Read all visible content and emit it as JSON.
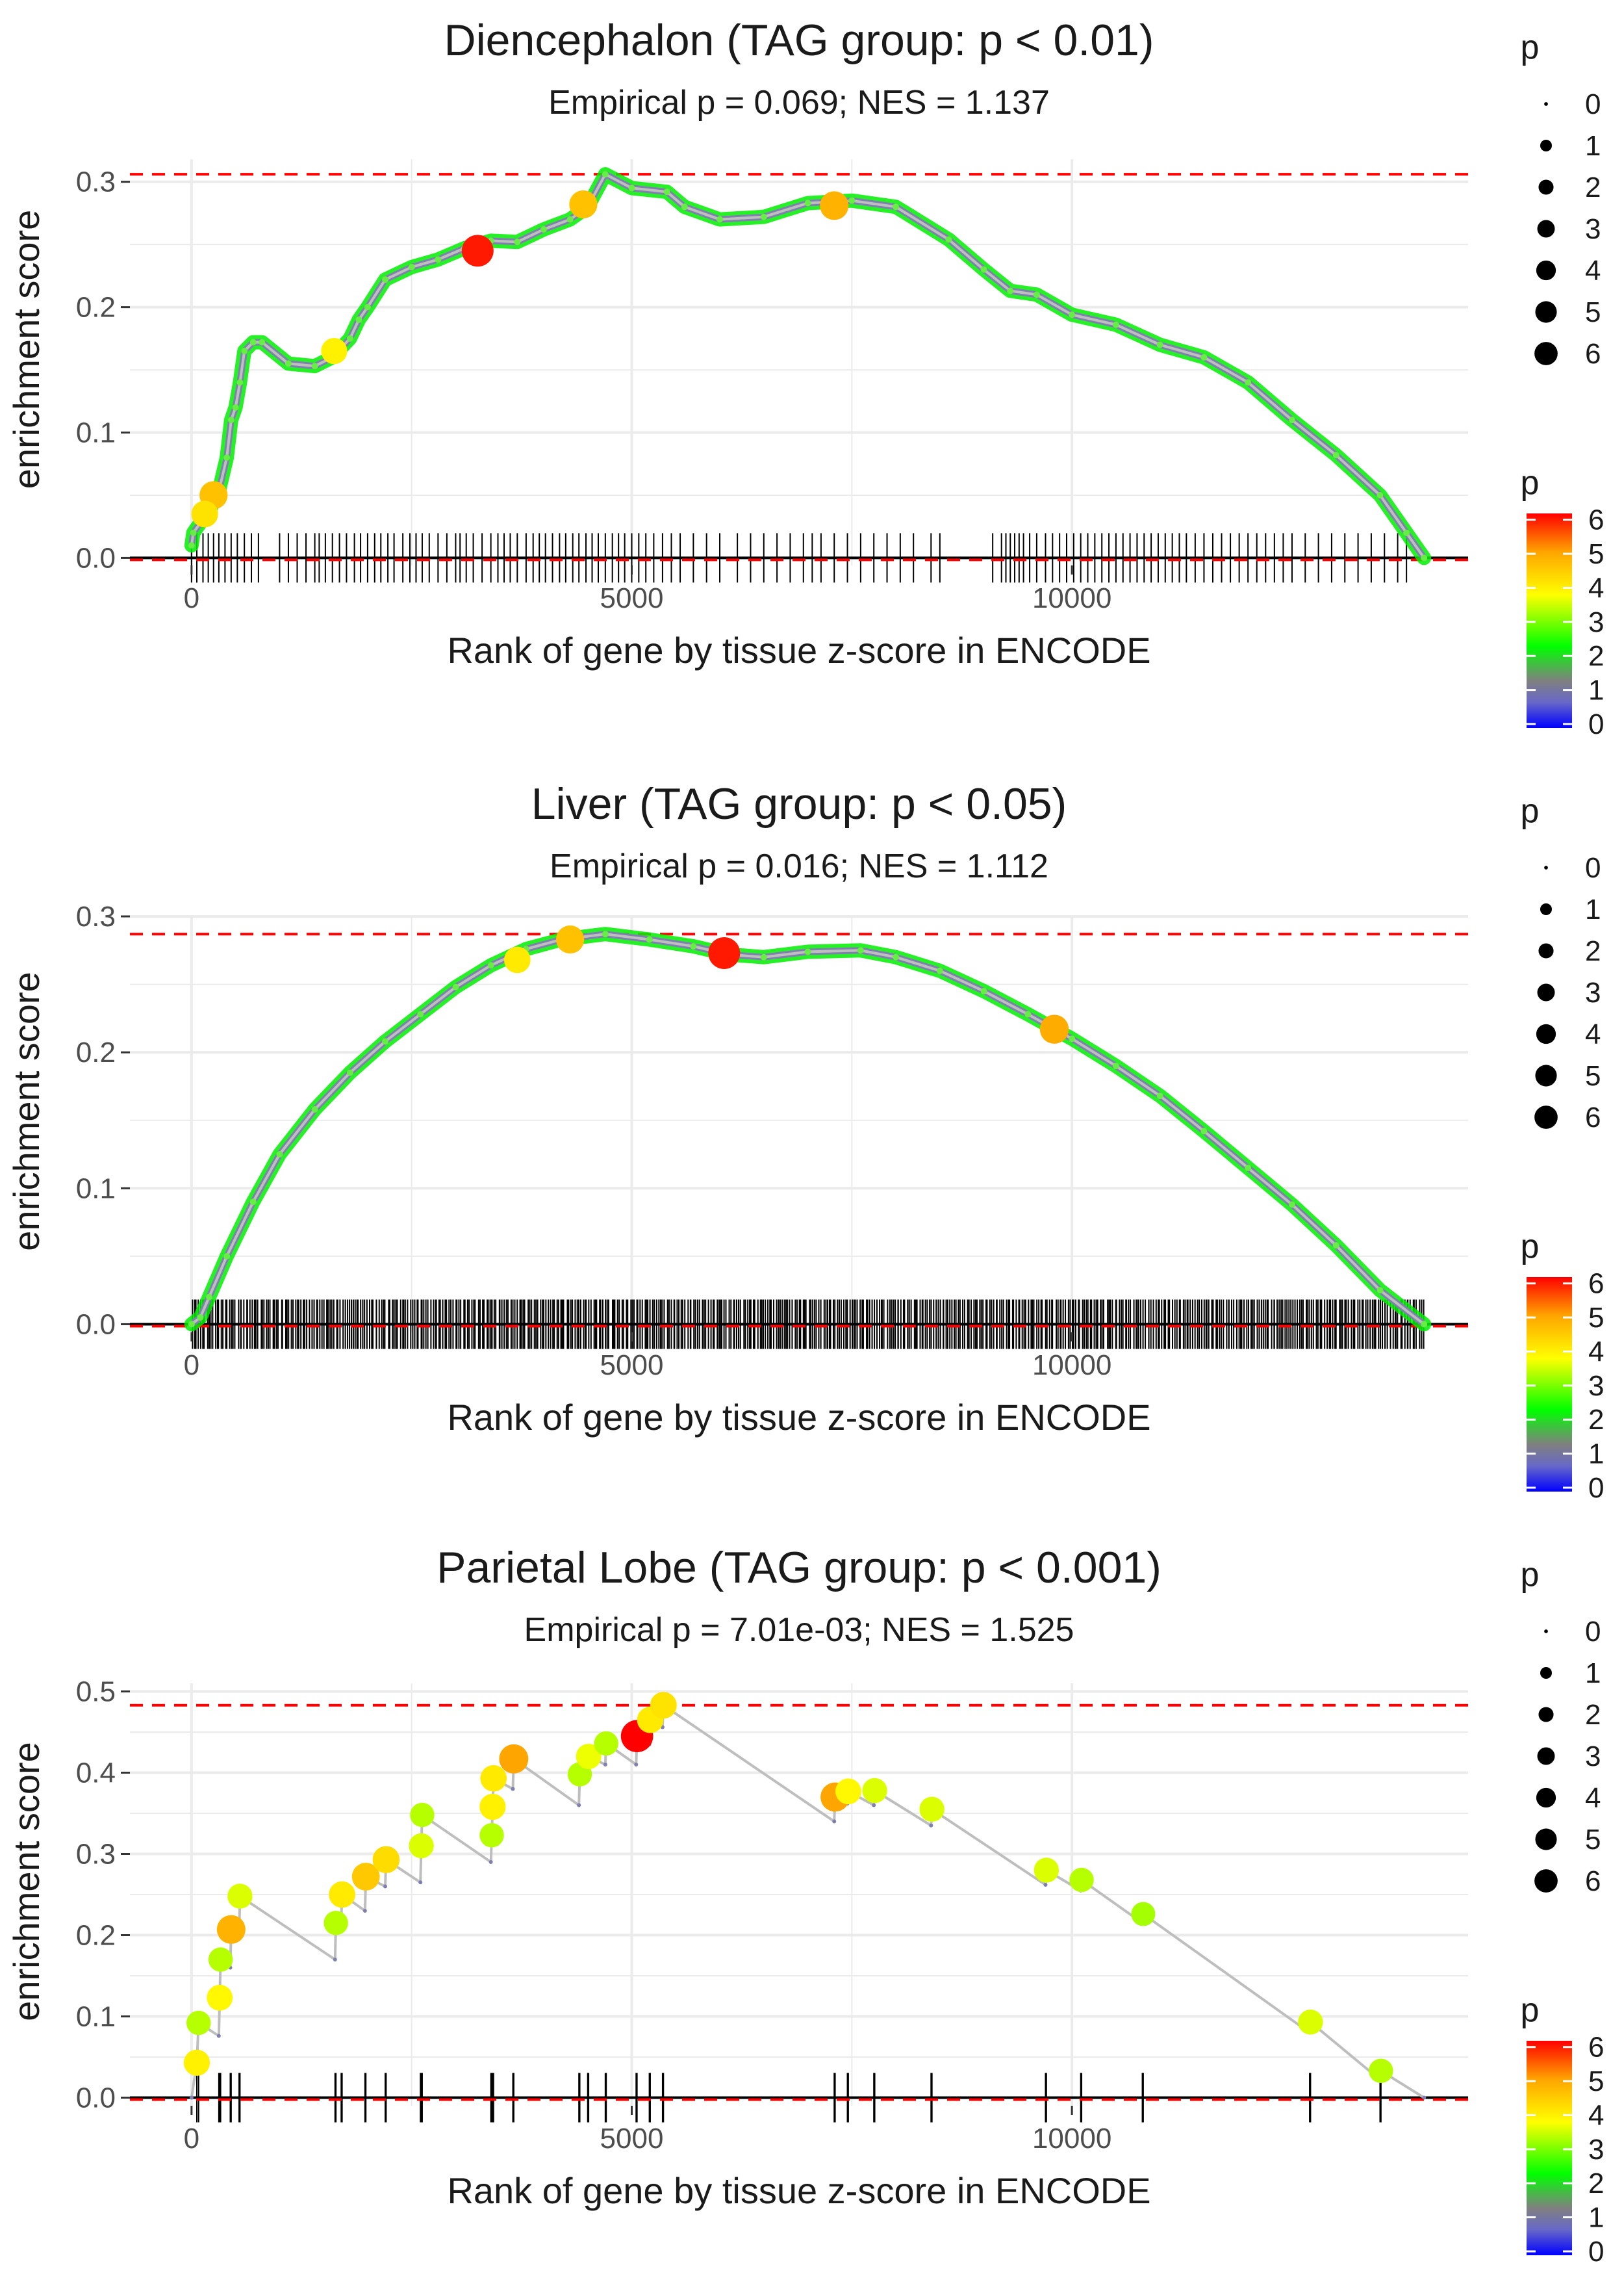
{
  "legend_title": "p",
  "chart_data": [
    {
      "type": "line",
      "title": "Diencephalon (TAG group: p < 0.01)",
      "subtitle": "Empirical p = 0.069; NES = 1.137",
      "xlabel": "Rank of gene by tissue z-score in ENCODE",
      "ylabel": "enrichment score",
      "xlim": [
        -700,
        14500
      ],
      "ylim": [
        -0.006,
        0.318
      ],
      "xticks": [
        0,
        5000,
        10000
      ],
      "xtick_labels": [
        "0",
        "5000",
        "10000"
      ],
      "yticks": [
        0.0,
        0.1,
        0.2,
        0.3
      ],
      "ytick_labels": [
        "0.0",
        "0.1",
        "0.2",
        "0.3"
      ],
      "max_es": 0.306,
      "line_points": [
        [
          0,
          0.01
        ],
        [
          20,
          0.02
        ],
        [
          100,
          0.028
        ],
        [
          200,
          0.038
        ],
        [
          300,
          0.05
        ],
        [
          400,
          0.08
        ],
        [
          450,
          0.11
        ],
        [
          500,
          0.12
        ],
        [
          550,
          0.14
        ],
        [
          600,
          0.165
        ],
        [
          700,
          0.172
        ],
        [
          800,
          0.172
        ],
        [
          1100,
          0.155
        ],
        [
          1400,
          0.153
        ],
        [
          1600,
          0.16
        ],
        [
          1800,
          0.175
        ],
        [
          1900,
          0.19
        ],
        [
          2000,
          0.2
        ],
        [
          2200,
          0.222
        ],
        [
          2500,
          0.232
        ],
        [
          2800,
          0.238
        ],
        [
          3100,
          0.247
        ],
        [
          3400,
          0.253
        ],
        [
          3700,
          0.252
        ],
        [
          4000,
          0.262
        ],
        [
          4300,
          0.27
        ],
        [
          4500,
          0.28
        ],
        [
          4700,
          0.306
        ],
        [
          5000,
          0.295
        ],
        [
          5400,
          0.292
        ],
        [
          5600,
          0.28
        ],
        [
          6000,
          0.27
        ],
        [
          6500,
          0.272
        ],
        [
          7000,
          0.283
        ],
        [
          7500,
          0.285
        ],
        [
          8000,
          0.28
        ],
        [
          8600,
          0.254
        ],
        [
          9000,
          0.23
        ],
        [
          9300,
          0.213
        ],
        [
          9600,
          0.21
        ],
        [
          10000,
          0.194
        ],
        [
          10500,
          0.186
        ],
        [
          11000,
          0.17
        ],
        [
          11500,
          0.16
        ],
        [
          12000,
          0.14
        ],
        [
          12500,
          0.11
        ],
        [
          13000,
          0.082
        ],
        [
          13500,
          0.05
        ],
        [
          13800,
          0.02
        ],
        [
          14000,
          0.0
        ]
      ],
      "highlight_points": [
        {
          "x": 250,
          "y": 0.05,
          "p": 4.3
        },
        {
          "x": 150,
          "y": 0.035,
          "p": 3.8
        },
        {
          "x": 4450,
          "y": 0.282,
          "p": 4.3
        },
        {
          "x": 3250,
          "y": 0.245,
          "p": 5.8
        },
        {
          "x": 7300,
          "y": 0.281,
          "p": 4.5
        },
        {
          "x": 1620,
          "y": 0.165,
          "p": 3.6
        }
      ],
      "hits": [
        0,
        60,
        130,
        190,
        250,
        310,
        380,
        450,
        520,
        600,
        680,
        760,
        1000,
        1100,
        1200,
        1300,
        1400,
        1450,
        1520,
        1600,
        1680,
        1760,
        1850,
        1920,
        2000,
        2080,
        2150,
        2230,
        2300,
        2400,
        2480,
        2550,
        2620,
        2700,
        2800,
        2900,
        3000,
        3050,
        3120,
        3200,
        3300,
        3400,
        3480,
        3550,
        3620,
        3700,
        3800,
        3880,
        3950,
        4020,
        4100,
        4180,
        4250,
        4330,
        4400,
        4480,
        4550,
        4620,
        4700,
        4780,
        4850,
        4920,
        5000,
        5080,
        5160,
        5250,
        5350,
        5450,
        5550,
        5700,
        5850,
        6000,
        6200,
        6350,
        6500,
        6650,
        6800,
        6950,
        7050,
        7150,
        7300,
        7450,
        7600,
        7750,
        7900,
        8050,
        8200,
        8400,
        8500,
        9100,
        9200,
        9250,
        9300,
        9350,
        9400,
        9450,
        9520,
        9600,
        9700,
        9780,
        9860,
        9940,
        10020,
        10100,
        10180,
        10260,
        10340,
        10420,
        10500,
        10580,
        10660,
        10740,
        10820,
        10900,
        10980,
        11060,
        11140,
        11220,
        11300,
        11400,
        11500,
        11600,
        11700,
        11800,
        11900,
        12000,
        12100,
        12200,
        12300,
        12400,
        12500,
        12650,
        12800,
        12950,
        13100,
        13250,
        13400,
        13550,
        13700,
        13800
      ]
    },
    {
      "type": "line",
      "title": "Liver (TAG group: p < 0.05)",
      "subtitle": "Empirical p = 0.016; NES = 1.112",
      "xlabel": "Rank of gene by tissue z-score in ENCODE",
      "ylabel": "enrichment score",
      "xlim": [
        -700,
        14500
      ],
      "ylim": [
        -0.006,
        0.3
      ],
      "xticks": [
        0,
        5000,
        10000
      ],
      "xtick_labels": [
        "0",
        "5000",
        "10000"
      ],
      "yticks": [
        0.0,
        0.1,
        0.2,
        0.3
      ],
      "ytick_labels": [
        "0.0",
        "0.1",
        "0.2",
        "0.3"
      ],
      "max_es": 0.287,
      "line_points": [
        [
          0,
          0.0
        ],
        [
          100,
          0.005
        ],
        [
          200,
          0.02
        ],
        [
          400,
          0.05
        ],
        [
          700,
          0.09
        ],
        [
          1000,
          0.125
        ],
        [
          1400,
          0.158
        ],
        [
          1800,
          0.185
        ],
        [
          2200,
          0.208
        ],
        [
          2600,
          0.228
        ],
        [
          3000,
          0.248
        ],
        [
          3400,
          0.264
        ],
        [
          3800,
          0.276
        ],
        [
          4200,
          0.283
        ],
        [
          4700,
          0.287
        ],
        [
          5200,
          0.283
        ],
        [
          5700,
          0.278
        ],
        [
          6100,
          0.272
        ],
        [
          6500,
          0.27
        ],
        [
          7000,
          0.274
        ],
        [
          7600,
          0.275
        ],
        [
          8000,
          0.27
        ],
        [
          8500,
          0.26
        ],
        [
          9000,
          0.245
        ],
        [
          9500,
          0.228
        ],
        [
          10000,
          0.21
        ],
        [
          10500,
          0.19
        ],
        [
          11000,
          0.168
        ],
        [
          11500,
          0.142
        ],
        [
          12000,
          0.115
        ],
        [
          12500,
          0.088
        ],
        [
          13000,
          0.058
        ],
        [
          13500,
          0.025
        ],
        [
          14000,
          0.0
        ]
      ],
      "highlight_points": [
        {
          "x": 6050,
          "y": 0.273,
          "p": 5.8
        },
        {
          "x": 9800,
          "y": 0.217,
          "p": 4.6
        },
        {
          "x": 4300,
          "y": 0.283,
          "p": 4.3
        },
        {
          "x": 3700,
          "y": 0.268,
          "p": 3.7
        }
      ],
      "hits_range": [
        0,
        14000
      ],
      "hits_count": 600
    },
    {
      "type": "line",
      "title": "Parietal Lobe (TAG group: p < 0.001)",
      "subtitle": "Empirical p = 7.01e-03; NES = 1.525",
      "xlabel": "Rank of gene by tissue z-score in ENCODE",
      "ylabel": "enrichment score",
      "xlim": [
        -700,
        14500
      ],
      "ylim": [
        -0.01,
        0.51
      ],
      "xticks": [
        0,
        5000,
        10000
      ],
      "xtick_labels": [
        "0",
        "5000",
        "10000"
      ],
      "yticks": [
        0.0,
        0.1,
        0.2,
        0.3,
        0.4,
        0.5
      ],
      "ytick_labels": [
        "0.0",
        "0.1",
        "0.2",
        "0.3",
        "0.4",
        "0.5"
      ],
      "max_es": 0.483,
      "line_points": [
        [
          0,
          0.0
        ],
        [
          60,
          0.043
        ],
        [
          80,
          0.092
        ],
        [
          310,
          0.076
        ],
        [
          320,
          0.123
        ],
        [
          330,
          0.17
        ],
        [
          440,
          0.16
        ],
        [
          450,
          0.207
        ],
        [
          540,
          0.2
        ],
        [
          550,
          0.248
        ],
        [
          1630,
          0.17
        ],
        [
          1640,
          0.215
        ],
        [
          1700,
          0.22
        ],
        [
          1710,
          0.25
        ],
        [
          1970,
          0.23
        ],
        [
          1980,
          0.272
        ],
        [
          2200,
          0.26
        ],
        [
          2210,
          0.293
        ],
        [
          2600,
          0.265
        ],
        [
          2610,
          0.31
        ],
        [
          2620,
          0.348
        ],
        [
          3400,
          0.29
        ],
        [
          3410,
          0.323
        ],
        [
          3420,
          0.358
        ],
        [
          3430,
          0.393
        ],
        [
          3650,
          0.38
        ],
        [
          3660,
          0.417
        ],
        [
          4400,
          0.36
        ],
        [
          4410,
          0.398
        ],
        [
          4500,
          0.39
        ],
        [
          4510,
          0.42
        ],
        [
          4700,
          0.41
        ],
        [
          4710,
          0.436
        ],
        [
          5050,
          0.41
        ],
        [
          5060,
          0.445
        ],
        [
          5200,
          0.435
        ],
        [
          5210,
          0.465
        ],
        [
          5350,
          0.456
        ],
        [
          5360,
          0.483
        ],
        [
          7300,
          0.34
        ],
        [
          7310,
          0.37
        ],
        [
          7450,
          0.362
        ],
        [
          7460,
          0.377
        ],
        [
          7750,
          0.36
        ],
        [
          7760,
          0.378
        ],
        [
          8400,
          0.335
        ],
        [
          8410,
          0.355
        ],
        [
          9700,
          0.262
        ],
        [
          9710,
          0.28
        ],
        [
          10100,
          0.255
        ],
        [
          10110,
          0.268
        ],
        [
          10800,
          0.215
        ],
        [
          10810,
          0.226
        ],
        [
          12700,
          0.08
        ],
        [
          12710,
          0.093
        ],
        [
          13500,
          0.022
        ],
        [
          13510,
          0.033
        ],
        [
          14000,
          0.0
        ]
      ],
      "highlight_points": [
        {
          "x": 60,
          "y": 0.043,
          "p": 3.6
        },
        {
          "x": 80,
          "y": 0.092,
          "p": 3.0
        },
        {
          "x": 320,
          "y": 0.123,
          "p": 3.5
        },
        {
          "x": 330,
          "y": 0.17,
          "p": 3.0
        },
        {
          "x": 450,
          "y": 0.207,
          "p": 4.5
        },
        {
          "x": 550,
          "y": 0.248,
          "p": 3.2
        },
        {
          "x": 1640,
          "y": 0.215,
          "p": 3.0
        },
        {
          "x": 1710,
          "y": 0.25,
          "p": 3.7
        },
        {
          "x": 1980,
          "y": 0.272,
          "p": 4.2
        },
        {
          "x": 2210,
          "y": 0.293,
          "p": 3.9
        },
        {
          "x": 2610,
          "y": 0.31,
          "p": 3.2
        },
        {
          "x": 2620,
          "y": 0.348,
          "p": 3.0
        },
        {
          "x": 3410,
          "y": 0.323,
          "p": 3.0
        },
        {
          "x": 3420,
          "y": 0.358,
          "p": 3.6
        },
        {
          "x": 3430,
          "y": 0.393,
          "p": 3.7
        },
        {
          "x": 3660,
          "y": 0.417,
          "p": 4.7
        },
        {
          "x": 4410,
          "y": 0.398,
          "p": 3.0
        },
        {
          "x": 4510,
          "y": 0.42,
          "p": 3.3
        },
        {
          "x": 4710,
          "y": 0.436,
          "p": 3.0
        },
        {
          "x": 5060,
          "y": 0.445,
          "p": 6.0
        },
        {
          "x": 5210,
          "y": 0.465,
          "p": 3.7
        },
        {
          "x": 5360,
          "y": 0.483,
          "p": 3.8
        },
        {
          "x": 7310,
          "y": 0.37,
          "p": 4.7
        },
        {
          "x": 7460,
          "y": 0.377,
          "p": 3.5
        },
        {
          "x": 7760,
          "y": 0.378,
          "p": 3.2
        },
        {
          "x": 8410,
          "y": 0.355,
          "p": 3.2
        },
        {
          "x": 9710,
          "y": 0.28,
          "p": 3.2
        },
        {
          "x": 10110,
          "y": 0.268,
          "p": 3.0
        },
        {
          "x": 10810,
          "y": 0.226,
          "p": 2.9
        },
        {
          "x": 12710,
          "y": 0.093,
          "p": 3.2
        },
        {
          "x": 13510,
          "y": 0.033,
          "p": 3.0
        }
      ],
      "hits": [
        60,
        80,
        310,
        320,
        330,
        440,
        450,
        540,
        550,
        1630,
        1640,
        1700,
        1710,
        1970,
        1980,
        2200,
        2210,
        2600,
        2610,
        2620,
        3400,
        3410,
        3420,
        3430,
        3650,
        3660,
        4400,
        4410,
        4500,
        4510,
        4700,
        4710,
        5050,
        5060,
        5200,
        5210,
        5350,
        5360,
        7300,
        7310,
        7450,
        7460,
        7750,
        7760,
        8400,
        8410,
        9700,
        9710,
        10100,
        10110,
        10800,
        10810,
        12700,
        12710,
        13500,
        13510
      ]
    }
  ],
  "size_legend_labels": [
    "0",
    "1",
    "2",
    "3",
    "4",
    "5",
    "6"
  ],
  "color_legend_labels": [
    "6",
    "5",
    "4",
    "3",
    "2",
    "1",
    "0"
  ],
  "colors": {
    "line": "#bebebe",
    "gridline": "#ebebeb",
    "max_line": "#ff0000",
    "axis_zero": "#000000",
    "scale": [
      "#0000ff",
      "#808080",
      "#00ff00",
      "#ffff00",
      "#ffa500",
      "#ff0000"
    ]
  }
}
